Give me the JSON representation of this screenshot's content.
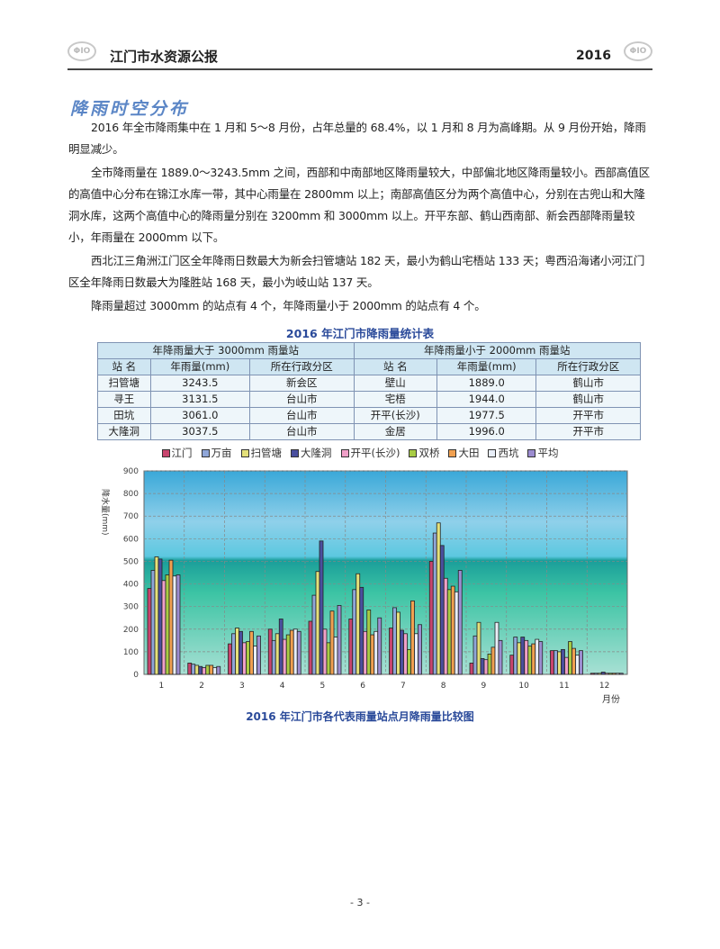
{
  "header": {
    "title": "江门市水资源公报",
    "year": "2016",
    "logo_text": "ΦΙΟ"
  },
  "section_title": "降雨时空分布",
  "paragraphs": [
    "2016 年全市降雨集中在 1 月和 5～8 月份，占年总量的 68.4%，以 1 月和 8 月为高峰期。从 9 月份开始，降雨明显减少。",
    "全市降雨量在 1889.0～3243.5mm 之间，西部和中南部地区降雨量较大，中部偏北地区降雨量较小。西部高值区的高值中心分布在锦江水库一带，其中心雨量在 2800mm 以上；南部高值区分为两个高值中心，分别在古兜山和大隆洞水库，这两个高值中心的降雨量分别在 3200mm 和 3000mm 以上。开平东部、鹤山西南部、新会西部降雨量较小，年雨量在 2000mm 以下。",
    "西北江三角洲江门区全年降雨日数最大为新会扫管塘站 182 天，最小为鹤山宅梧站 133 天；粤西沿海诸小河江门区全年降雨日数最大为隆胜站 168 天，最小为岐山站 137 天。",
    "降雨量超过 3000mm 的站点有 4 个，年降雨量小于 2000mm 的站点有 4 个。"
  ],
  "table": {
    "title": "2016 年江门市降雨量统计表",
    "group_headers": [
      "年降雨量大于 3000mm 雨量站",
      "年降雨量小于 2000mm 雨量站"
    ],
    "columns": [
      "站 名",
      "年雨量(mm)",
      "所在行政分区",
      "站 名",
      "年雨量(mm)",
      "所在行政分区"
    ],
    "rows": [
      [
        "扫管塘",
        "3243.5",
        "新会区",
        "壁山",
        "1889.0",
        "鹤山市"
      ],
      [
        "寻王",
        "3131.5",
        "台山市",
        "宅梧",
        "1944.0",
        "鹤山市"
      ],
      [
        "田坑",
        "3061.0",
        "台山市",
        "开平(长沙)",
        "1977.5",
        "开平市"
      ],
      [
        "大隆洞",
        "3037.5",
        "台山市",
        "金居",
        "1996.0",
        "开平市"
      ]
    ]
  },
  "chart_data": {
    "type": "bar",
    "title": "2016 年江门市各代表雨量站点月降雨量比较图",
    "xlabel": "月份",
    "ylabel": "降水量(mm)",
    "ylim": [
      0,
      900
    ],
    "yticks": [
      "0",
      "100",
      "200",
      "300",
      "400",
      "500",
      "600",
      "700",
      "800",
      "900"
    ],
    "categories": [
      "1",
      "2",
      "3",
      "4",
      "5",
      "6",
      "7",
      "8",
      "9",
      "10",
      "11",
      "12"
    ],
    "grid": true,
    "legend": "top",
    "series": [
      {
        "name": "江门",
        "color": "#c8456e",
        "values": [
          380,
          50,
          135,
          200,
          235,
          245,
          205,
          500,
          50,
          85,
          105,
          5
        ]
      },
      {
        "name": "万亩",
        "color": "#8fa6d8",
        "values": [
          460,
          45,
          180,
          150,
          350,
          375,
          295,
          625,
          170,
          165,
          105,
          5
        ]
      },
      {
        "name": "扫管塘",
        "color": "#e4e07a",
        "values": [
          520,
          40,
          205,
          180,
          455,
          445,
          275,
          670,
          230,
          140,
          100,
          5
        ]
      },
      {
        "name": "大隆洞",
        "color": "#4a4f9e",
        "values": [
          510,
          35,
          190,
          245,
          590,
          385,
          195,
          570,
          70,
          165,
          110,
          10
        ]
      },
      {
        "name": "开平(长沙)",
        "color": "#f0a0c8",
        "values": [
          415,
          30,
          140,
          155,
          200,
          190,
          180,
          425,
          65,
          150,
          75,
          5
        ]
      },
      {
        "name": "双桥",
        "color": "#a8cc44",
        "values": [
          440,
          40,
          145,
          175,
          140,
          285,
          110,
          375,
          90,
          125,
          145,
          5
        ]
      },
      {
        "name": "大田",
        "color": "#f0a050",
        "values": [
          505,
          40,
          190,
          195,
          280,
          175,
          325,
          390,
          120,
          135,
          115,
          5
        ]
      },
      {
        "name": "西坑",
        "color": "#e8eef8",
        "values": [
          435,
          30,
          125,
          200,
          165,
          190,
          180,
          365,
          230,
          155,
          85,
          5
        ]
      },
      {
        "name": "平均",
        "color": "#9c8cd0",
        "values": [
          440,
          35,
          170,
          190,
          305,
          250,
          220,
          460,
          150,
          145,
          105,
          5
        ]
      }
    ]
  },
  "page_number": "- 3 -"
}
